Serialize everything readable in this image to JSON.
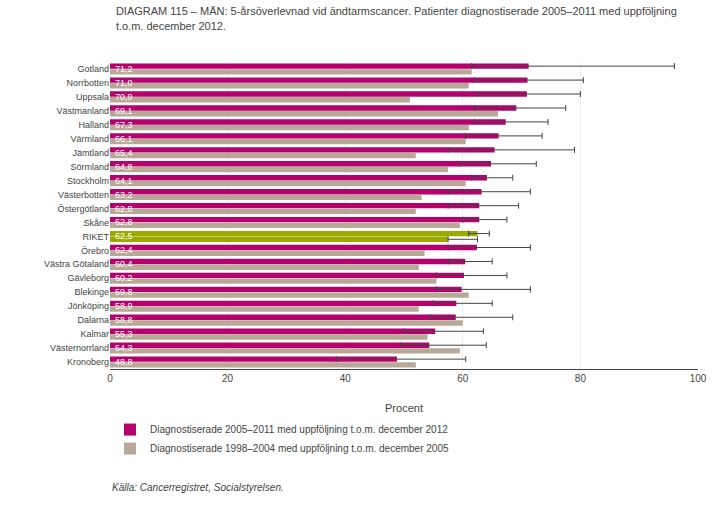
{
  "chart_data": {
    "type": "bar",
    "orientation": "horizontal",
    "title": "DIAGRAM 115 – MÄN: 5-årsöverlevnad vid ändtarmscancer. Patienter diagnostiserade 2005–2011 med uppföljning\nt.o.m. december 2012.",
    "xlabel": "Procent",
    "annotations": [
      "Källa: Cancerregistret, Socialstyrelsen."
    ],
    "categories": [
      "Gotland",
      "Norrbotten",
      "Uppsala",
      "Västmanland",
      "Halland",
      "Värmland",
      "Jämtland",
      "Sörmland",
      "Stockholm",
      "Västerbotten",
      "Östergötland",
      "Skåne",
      "RIKET",
      "Örebro",
      "Västra Götaland",
      "Gävleborg",
      "Blekinge",
      "Jönköping",
      "Dalarna",
      "Kalmar",
      "Västernorrland",
      "Kronoberg"
    ],
    "series": [
      {
        "name": "Diagnostiserade 2005–2011 med uppföljning t.o.m. december 2012",
        "color": "#b5006e",
        "colors": [
          "#b5006e",
          "#b5006e",
          "#b5006e",
          "#b5006e",
          "#b5006e",
          "#b5006e",
          "#b5006e",
          "#b5006e",
          "#b5006e",
          "#b5006e",
          "#b5006e",
          "#b5006e",
          "#9aaa00",
          "#b5006e",
          "#b5006e",
          "#b5006e",
          "#b5006e",
          "#b5006e",
          "#b5006e",
          "#b5006e",
          "#b5006e",
          "#b5006e"
        ],
        "values": [
          71.2,
          71.0,
          70.9,
          69.1,
          67.3,
          66.1,
          65.4,
          64.8,
          64.1,
          63.2,
          62.8,
          62.8,
          62.5,
          62.4,
          60.4,
          60.2,
          59.8,
          58.9,
          58.8,
          55.3,
          54.3,
          48.8
        ],
        "value_labels": [
          "71,2",
          "71,0",
          "70,9",
          "69,1",
          "67,3",
          "66,1",
          "65,4",
          "64,8",
          "64,1",
          "63,2",
          "62,8",
          "62,8",
          "62,5",
          "62,4",
          "60,4",
          "60,2",
          "59,8",
          "58,9",
          "58,8",
          "55,3",
          "54,3",
          "48,8"
        ],
        "ci_low": [
          61.5,
          62.0,
          62.5,
          62.0,
          62.0,
          60.5,
          57.5,
          59.5,
          61.5,
          57.5,
          57.5,
          60.0,
          61.0,
          57.5,
          57.5,
          55.5,
          55.5,
          55.0,
          54.5,
          50.0,
          49.5,
          38.5
        ],
        "ci_high": [
          96.0,
          80.5,
          80.0,
          77.5,
          74.5,
          73.5,
          79.0,
          72.5,
          68.5,
          71.5,
          69.5,
          67.5,
          64.5,
          71.5,
          65.0,
          67.5,
          71.5,
          65.0,
          68.5,
          63.5,
          64.0,
          60.5
        ]
      },
      {
        "name": "Diagnostiserade 1998–2004 med uppföljning t.o.m. december 2005",
        "color": "#b8a898",
        "colors": [
          "#b8a898",
          "#b8a898",
          "#b8a898",
          "#b8a898",
          "#b8a898",
          "#b8a898",
          "#b8a898",
          "#b8a898",
          "#b8a898",
          "#b8a898",
          "#b8a898",
          "#b8a898",
          "#9aaa00",
          "#b8a898",
          "#b8a898",
          "#b8a898",
          "#b8a898",
          "#b8a898",
          "#b8a898",
          "#b8a898",
          "#b8a898",
          "#b8a898"
        ],
        "values": [
          61.5,
          61.0,
          51.0,
          66.0,
          61.0,
          60.5,
          52.0,
          57.5,
          60.5,
          53.0,
          52.0,
          59.5,
          57.5,
          53.5,
          52.5,
          55.5,
          61.0,
          52.5,
          60.0,
          54.0,
          59.5,
          52.0
        ],
        "ci_low": [
          null,
          null,
          null,
          null,
          null,
          null,
          null,
          null,
          null,
          null,
          null,
          null,
          57.5,
          null,
          null,
          null,
          null,
          null,
          null,
          null,
          null,
          null
        ],
        "ci_high": [
          null,
          null,
          null,
          null,
          null,
          null,
          null,
          null,
          null,
          null,
          null,
          null,
          62.5,
          null,
          null,
          null,
          null,
          null,
          null,
          null,
          null,
          null
        ]
      }
    ],
    "xlim": [
      0,
      100
    ],
    "xticks": [
      0,
      20,
      40,
      60,
      80,
      100
    ],
    "grid": true,
    "legend": "lower left",
    "data_labels": true
  }
}
